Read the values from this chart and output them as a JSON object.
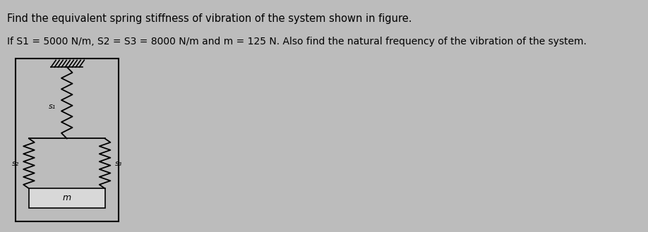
{
  "title_line1": "Find the equivalent spring stiffness of vibration of the system shown in figure.",
  "title_line2": "If S1 = 5000 N/m, S2 = S3 = 8000 N/m and m = 125 N. Also find the natural frequency of the vibration of the system.",
  "bg_color": "#bcbcbc",
  "text_color": "#000000",
  "fig_width": 9.18,
  "fig_height": 3.29,
  "label_s1": "s₁",
  "label_s2": "s₂",
  "label_s3": "s₃",
  "label_m": "m"
}
